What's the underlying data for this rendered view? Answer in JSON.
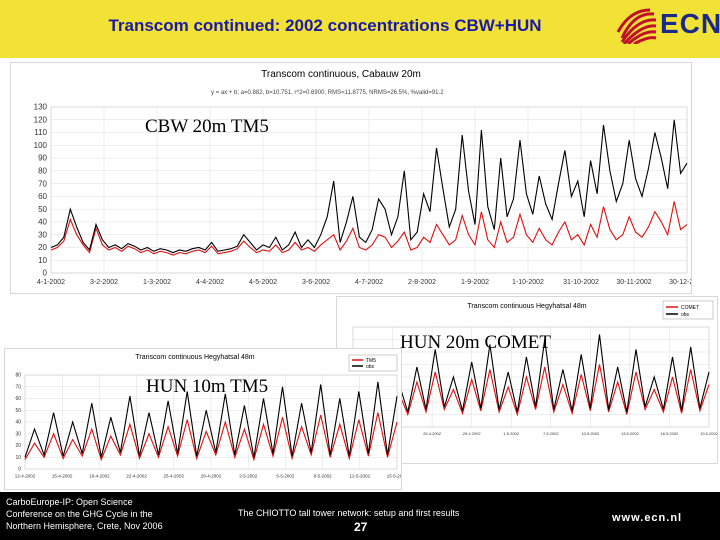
{
  "slide": {
    "title": "Transcom continued: 2002 concentrations CBW+HUN",
    "logo_text": "ECN",
    "labels": {
      "cbw": "CBW 20m TM5",
      "hun20": "HUN 20m COMET",
      "hun10": "HUN 10m TM5"
    },
    "footer": {
      "line1": "CarboEurope-IP: Open Science",
      "line2": "Conference on the GHG Cycle in the",
      "line3": "Northern Hemisphere, Crete, Nov 2006",
      "middle": "The CHIOTTO tall tower network: setup and first results",
      "page": "27",
      "url": "www.ecn.nl"
    }
  },
  "colors": {
    "header_bg": "#f2e236",
    "title_text": "#1a1aa8",
    "logo": "#c0102a",
    "series_model": "#e01010",
    "series_obs": "#000000"
  },
  "chart_data": [
    {
      "type": "line",
      "title": "Transcom continuous, Cabauw 20m",
      "subtitle": "y = ax + b; a=0.882, b=10.751, r^2=0.6900, RMS=11.8775, NRMS=26.5%, %valid=91.2",
      "x_tick_labels": [
        "4-1-2002",
        "3-2-2002",
        "1-3-2002",
        "4-4-2002",
        "4-5-2002",
        "3-6-2002",
        "4-7-2002",
        "2-8-2002",
        "1-9-2002",
        "1-10-2002",
        "31-10-2002",
        "30-11-2002",
        "30-12-2002"
      ],
      "y_ticks": [
        0,
        10,
        20,
        30,
        40,
        50,
        60,
        70,
        80,
        90,
        100,
        110,
        120,
        130
      ],
      "ylim": [
        0,
        130
      ],
      "grid": true,
      "series": [
        {
          "color": "#e01010",
          "values": [
            18,
            20,
            25,
            42,
            30,
            22,
            16,
            35,
            22,
            18,
            20,
            17,
            21,
            19,
            16,
            18,
            15,
            17,
            16,
            14,
            16,
            15,
            17,
            18,
            16,
            21,
            15,
            16,
            17,
            19,
            25,
            20,
            16,
            18,
            17,
            22,
            16,
            18,
            24,
            18,
            20,
            17,
            22,
            26,
            30,
            18,
            25,
            35,
            20,
            18,
            22,
            30,
            28,
            20,
            25,
            32,
            18,
            20,
            28,
            24,
            38,
            30,
            22,
            26,
            45,
            30,
            22,
            48,
            26,
            20,
            40,
            24,
            28,
            46,
            30,
            24,
            35,
            26,
            22,
            32,
            40,
            26,
            30,
            22,
            38,
            28,
            52,
            34,
            26,
            30,
            44,
            32,
            28,
            36,
            48,
            40,
            30,
            56,
            34,
            38
          ]
        },
        {
          "color": "#000000",
          "values": [
            20,
            22,
            28,
            50,
            36,
            24,
            18,
            38,
            26,
            20,
            22,
            19,
            23,
            21,
            18,
            20,
            17,
            19,
            18,
            16,
            18,
            17,
            19,
            20,
            18,
            24,
            17,
            18,
            19,
            21,
            30,
            24,
            18,
            22,
            20,
            28,
            18,
            22,
            32,
            20,
            26,
            20,
            30,
            44,
            72,
            24,
            40,
            60,
            28,
            24,
            34,
            58,
            50,
            30,
            44,
            80,
            26,
            32,
            62,
            48,
            98,
            66,
            36,
            50,
            108,
            64,
            38,
            112,
            52,
            34,
            90,
            44,
            58,
            104,
            62,
            46,
            76,
            54,
            42,
            70,
            96,
            60,
            72,
            44,
            88,
            62,
            116,
            80,
            56,
            70,
            104,
            74,
            60,
            82,
            110,
            90,
            66,
            120,
            78,
            86
          ]
        }
      ]
    },
    {
      "type": "line",
      "title": "Transcom continuous Hegyhatsal 48m",
      "legend": [
        "COMET",
        "obs"
      ],
      "x_tick_labels": [
        "19.4.2002",
        "25.4.2002",
        "25.4.2002",
        "29.4.2002",
        "1.5.2002",
        "7.5.2002",
        "10.5.2002",
        "13.5.2002",
        "16.5.2002",
        "19.5.2002"
      ],
      "grid": true,
      "series": [
        {
          "color": "#e01010",
          "values": [
            10,
            30,
            12,
            40,
            14,
            28,
            10,
            36,
            12,
            44,
            14,
            30,
            11,
            38,
            13,
            46,
            12,
            32,
            10,
            40,
            14,
            48,
            12,
            34,
            11,
            42,
            13,
            50,
            12,
            36,
            10,
            44,
            14,
            30,
            12,
            40,
            11,
            46,
            13,
            34
          ]
        },
        {
          "color": "#000000",
          "values": [
            12,
            40,
            14,
            56,
            16,
            36,
            12,
            48,
            14,
            62,
            16,
            40,
            13,
            52,
            15,
            66,
            14,
            44,
            12,
            56,
            16,
            70,
            14,
            46,
            13,
            58,
            15,
            74,
            14,
            48,
            12,
            62,
            16,
            40,
            14,
            56,
            13,
            64,
            15,
            44
          ]
        }
      ]
    },
    {
      "type": "line",
      "title": "Transcom continuous Hegyhatsal 48m",
      "legend": [
        "TM5",
        "obs"
      ],
      "x_tick_labels": [
        "12-4-2002",
        "15-4-2002",
        "18-4-2002",
        "22-4-2002",
        "25-4-2002",
        "28-4-2002",
        "2-5-2002",
        "5-5-2002",
        "8-5-2002",
        "12-5-2002",
        "15-5-2002"
      ],
      "y_ticks": [
        0,
        10,
        20,
        30,
        40,
        50,
        60,
        70,
        80
      ],
      "ylim": [
        0,
        80
      ],
      "grid": true,
      "series": [
        {
          "color": "#e01010",
          "values": [
            8,
            22,
            10,
            30,
            9,
            25,
            11,
            34,
            8,
            28,
            12,
            38,
            9,
            30,
            10,
            36,
            11,
            42,
            9,
            32,
            12,
            40,
            10,
            34,
            8,
            38,
            11,
            44,
            9,
            36,
            12,
            46,
            10,
            38,
            9,
            42,
            11,
            48,
            10,
            40
          ]
        },
        {
          "color": "#000000",
          "values": [
            10,
            34,
            12,
            48,
            11,
            40,
            13,
            56,
            10,
            44,
            14,
            62,
            11,
            48,
            12,
            58,
            13,
            66,
            11,
            50,
            14,
            64,
            12,
            54,
            10,
            60,
            13,
            70,
            11,
            56,
            14,
            72,
            12,
            60,
            11,
            66,
            13,
            74,
            12,
            62
          ]
        }
      ]
    }
  ]
}
